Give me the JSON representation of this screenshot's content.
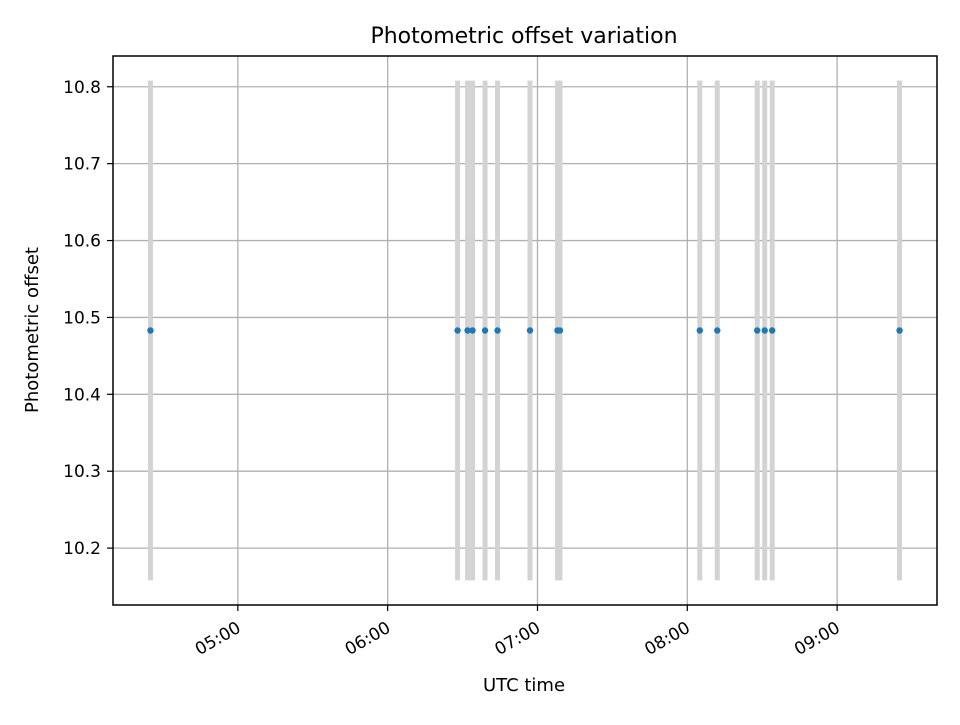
{
  "chart_data": {
    "type": "scatter",
    "title": "Photometric offset variation",
    "xlabel": "UTC time",
    "ylabel": "Photometric offset",
    "x_axis_kind": "time",
    "xlim": [
      "04:10",
      "09:40"
    ],
    "ylim": [
      10.126,
      10.84
    ],
    "x_ticks": [
      "05:00",
      "06:00",
      "07:00",
      "08:00",
      "09:00"
    ],
    "y_ticks": [
      10.2,
      10.3,
      10.4,
      10.5,
      10.6,
      10.7,
      10.8
    ],
    "y_tick_labels": [
      "10.2",
      "10.3",
      "10.4",
      "10.5",
      "10.6",
      "10.7",
      "10.8"
    ],
    "grid": true,
    "series": [
      {
        "marker_color": "#1f77b4",
        "error_bar_color": "#d3d3d3",
        "points": [
          {
            "x": "04:25",
            "y": 10.483,
            "ymin": 10.158,
            "ymax": 10.808
          },
          {
            "x": "06:28",
            "y": 10.483,
            "ymin": 10.158,
            "ymax": 10.808
          },
          {
            "x": "06:32",
            "y": 10.483,
            "ymin": 10.158,
            "ymax": 10.808
          },
          {
            "x": "06:34",
            "y": 10.483,
            "ymin": 10.158,
            "ymax": 10.808
          },
          {
            "x": "06:39",
            "y": 10.483,
            "ymin": 10.158,
            "ymax": 10.808
          },
          {
            "x": "06:44",
            "y": 10.483,
            "ymin": 10.158,
            "ymax": 10.808
          },
          {
            "x": "06:57",
            "y": 10.483,
            "ymin": 10.158,
            "ymax": 10.808
          },
          {
            "x": "07:08",
            "y": 10.483,
            "ymin": 10.158,
            "ymax": 10.808
          },
          {
            "x": "07:09",
            "y": 10.483,
            "ymin": 10.158,
            "ymax": 10.808
          },
          {
            "x": "08:05",
            "y": 10.483,
            "ymin": 10.158,
            "ymax": 10.808
          },
          {
            "x": "08:12",
            "y": 10.483,
            "ymin": 10.158,
            "ymax": 10.808
          },
          {
            "x": "08:28",
            "y": 10.483,
            "ymin": 10.158,
            "ymax": 10.808
          },
          {
            "x": "08:31",
            "y": 10.483,
            "ymin": 10.158,
            "ymax": 10.808
          },
          {
            "x": "08:34",
            "y": 10.483,
            "ymin": 10.158,
            "ymax": 10.808
          },
          {
            "x": "09:25",
            "y": 10.483,
            "ymin": 10.158,
            "ymax": 10.808
          }
        ]
      }
    ]
  }
}
